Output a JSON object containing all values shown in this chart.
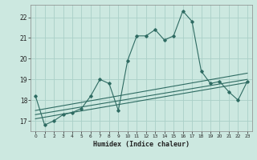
{
  "xlabel": "Humidex (Indice chaleur)",
  "bg_color": "#cce8e0",
  "grid_color": "#aad0c8",
  "line_color": "#2e6b62",
  "xlim": [
    -0.5,
    23.5
  ],
  "ylim": [
    16.5,
    22.6
  ],
  "yticks": [
    17,
    18,
    19,
    20,
    21,
    22
  ],
  "xticks": [
    0,
    1,
    2,
    3,
    4,
    5,
    6,
    7,
    8,
    9,
    10,
    11,
    12,
    13,
    14,
    15,
    16,
    17,
    18,
    19,
    20,
    21,
    22,
    23
  ],
  "series1_x": [
    0,
    1,
    2,
    3,
    4,
    5,
    6,
    7,
    8,
    9,
    10,
    11,
    12,
    13,
    14,
    15,
    16,
    17,
    18,
    19,
    20,
    21,
    22,
    23
  ],
  "series1_y": [
    18.2,
    16.8,
    17.0,
    17.3,
    17.4,
    17.6,
    18.2,
    19.0,
    18.8,
    17.5,
    19.9,
    21.1,
    21.1,
    21.4,
    20.9,
    21.1,
    22.3,
    21.8,
    19.4,
    18.8,
    18.9,
    18.4,
    18.0,
    18.9
  ],
  "series2_x": [
    0,
    23
  ],
  "series2_y": [
    17.5,
    19.3
  ],
  "series3_x": [
    0,
    23
  ],
  "series3_y": [
    17.3,
    19.0
  ],
  "series4_x": [
    0,
    23
  ],
  "series4_y": [
    17.1,
    18.85
  ]
}
